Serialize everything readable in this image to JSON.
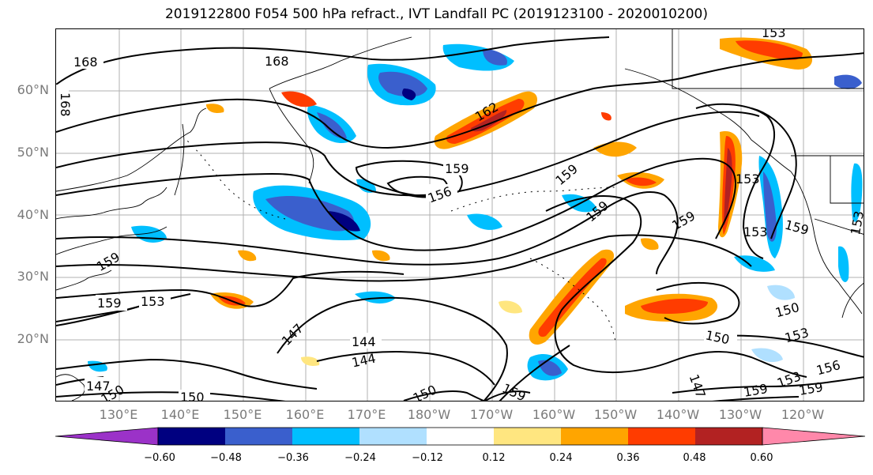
{
  "title": "2019122800 F054 500 hPa refract., IVT Landfall PC (2019123100 - 2020010200)",
  "lat_labels": [
    "60°N",
    "50°N",
    "40°N",
    "30°N",
    "20°N"
  ],
  "lon_labels": [
    "130°E",
    "140°E",
    "150°E",
    "160°E",
    "170°E",
    "180°W",
    "170°W",
    "160°W",
    "150°W",
    "140°W",
    "130°W",
    "120°W"
  ],
  "colorbar": {
    "ticks": [
      "−0.60",
      "−0.48",
      "−0.36",
      "−0.24",
      "−0.12",
      "0.12",
      "0.24",
      "0.36",
      "0.48",
      "0.60"
    ],
    "colors": [
      "#9b32c8",
      "#000080",
      "#3a5fcd",
      "#00bfff",
      "#b0e0ff",
      "#ffffff",
      "#ffe680",
      "#ffa500",
      "#ff3c00",
      "#b22222",
      "#ff88aa"
    ]
  },
  "contour_labels": [
    "168",
    "168",
    "168",
    "162",
    "159",
    "156",
    "159",
    "159",
    "159",
    "153",
    "153",
    "153",
    "159",
    "159",
    "159",
    "153",
    "147",
    "144",
    "144",
    "147",
    "150",
    "150",
    "150",
    "150",
    "150",
    "153",
    "156",
    "153",
    "159",
    "159",
    "147",
    "159",
    "153"
  ]
}
